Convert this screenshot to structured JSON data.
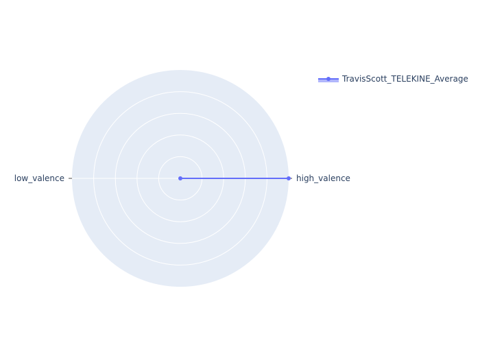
{
  "chart_data": {
    "type": "radar",
    "categories": [
      "high_valence",
      "low_valence"
    ],
    "series": [
      {
        "name": "TravisScott_TELEKINE_Average",
        "values": [
          1,
          0
        ],
        "color": "#636efa"
      }
    ],
    "radial_range": [
      0,
      1
    ],
    "grid": true,
    "legend_position": "top-right",
    "background_color": "#e5ecf6",
    "grid_color": "#ffffff",
    "text_color": "#2a3f5f"
  }
}
